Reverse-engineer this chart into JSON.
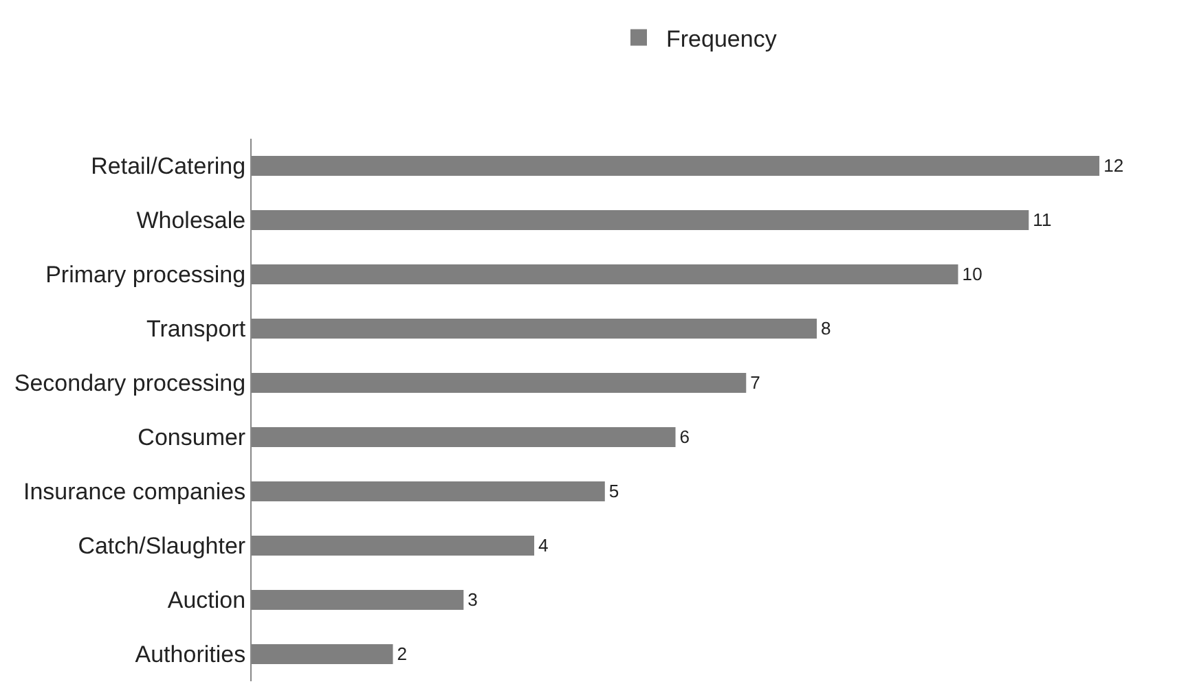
{
  "chart_data": {
    "type": "bar",
    "orientation": "horizontal",
    "categories": [
      "Retail/Catering",
      "Wholesale",
      "Primary processing",
      "Transport",
      "Secondary processing",
      "Consumer",
      "Insurance companies",
      "Catch/Slaughter",
      "Auction",
      "Authorities"
    ],
    "series": [
      {
        "name": "Frequency",
        "color": "#7f7f7f",
        "values": [
          12,
          11,
          10,
          8,
          7,
          6,
          5,
          4,
          3,
          2
        ]
      }
    ],
    "data_labels": true,
    "legend": "top",
    "grid": false,
    "tick_labels": "y"
  }
}
